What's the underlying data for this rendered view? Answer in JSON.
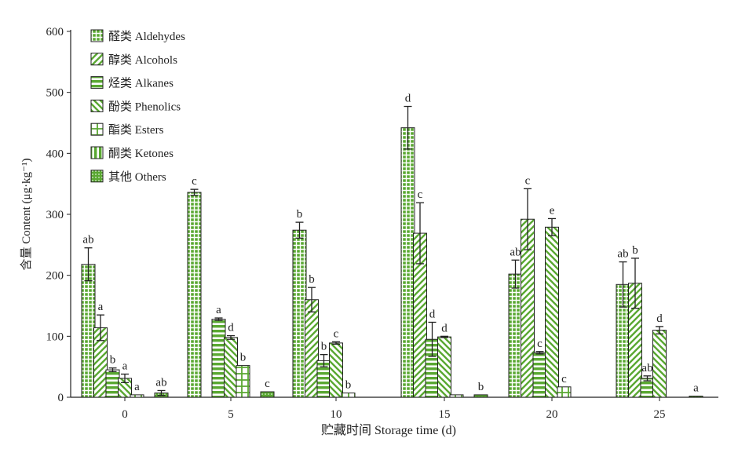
{
  "chart_data": {
    "type": "bar",
    "xlabel": "贮藏时间 Storage time (d)",
    "ylabel": "含量 Content (μg·kg⁻¹)",
    "ylim": [
      0,
      600
    ],
    "yticks": [
      0,
      100,
      200,
      300,
      400,
      500,
      600
    ],
    "categories": [
      "0",
      "5",
      "10",
      "15",
      "20",
      "25"
    ],
    "legend_position": "top-left",
    "colors": {
      "fill": "#5aa832",
      "stroke": "#222222",
      "pattern_light": "#ffffff"
    },
    "series": [
      {
        "name": "醛类 Aldehydes",
        "pattern": "grid",
        "values": [
          218,
          336,
          274,
          442,
          202,
          185
        ],
        "errors": [
          27,
          5,
          13,
          35,
          23,
          37
        ],
        "labels": [
          "ab",
          "c",
          "b",
          "d",
          "ab",
          "ab"
        ]
      },
      {
        "name": "醇类 Alcohols",
        "pattern": "diag-right",
        "values": [
          114,
          null,
          160,
          269,
          292,
          187
        ],
        "errors": [
          21,
          null,
          20,
          50,
          50,
          41
        ],
        "labels": [
          "a",
          "",
          "b",
          "c",
          "c",
          "b"
        ]
      },
      {
        "name": "烃类 Alkanes",
        "pattern": "horizontal",
        "values": [
          45,
          128,
          60,
          95,
          73,
          31
        ],
        "errors": [
          3,
          2,
          10,
          28,
          2,
          4
        ],
        "labels": [
          "b",
          "a",
          "b",
          "d",
          "c",
          "ab"
        ]
      },
      {
        "name": "酚类 Phenolics",
        "pattern": "diag-left",
        "values": [
          31,
          98,
          89,
          99,
          279,
          110
        ],
        "errors": [
          7,
          3,
          2,
          1,
          14,
          6
        ],
        "labels": [
          "a",
          "d",
          "c",
          "d",
          "e",
          "d"
        ]
      },
      {
        "name": "酯类 Esters",
        "pattern": "cross",
        "values": [
          4,
          52,
          7,
          4,
          17,
          null
        ],
        "errors": [
          0,
          0,
          0,
          0,
          0,
          null
        ],
        "labels": [
          "a",
          "b",
          "b",
          "",
          "c",
          ""
        ]
      },
      {
        "name": "酮类 Ketones",
        "pattern": "vertical",
        "values": [
          null,
          null,
          null,
          null,
          null,
          null
        ],
        "errors": [
          null,
          null,
          null,
          null,
          null,
          null
        ],
        "labels": [
          "",
          "",
          "",
          "",
          "",
          ""
        ]
      },
      {
        "name": "其他 Others",
        "pattern": "dots",
        "values": [
          7,
          9,
          null,
          4,
          null,
          1
        ],
        "errors": [
          4,
          0,
          null,
          0,
          null,
          0
        ],
        "labels": [
          "ab",
          "c",
          "",
          "b",
          "",
          "a"
        ]
      }
    ]
  }
}
